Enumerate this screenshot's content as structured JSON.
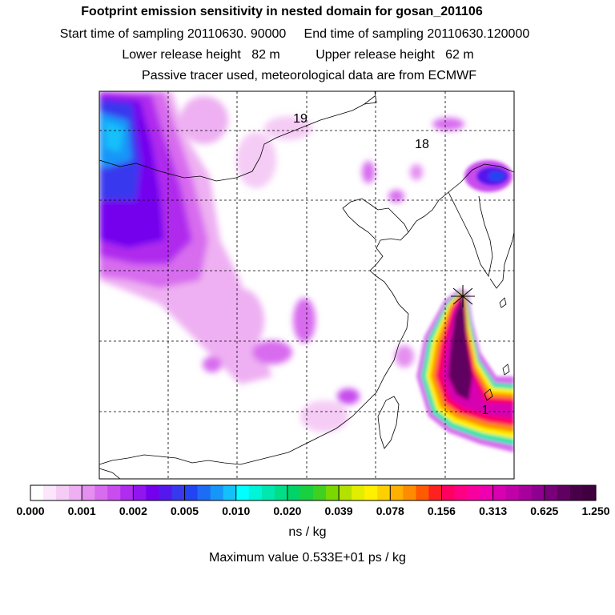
{
  "title": {
    "line1": "Footprint emission sensitivity in nested domain for gosan_201106",
    "line2_a": "Start time of sampling 20110630. 90000",
    "line2_b": "End time of sampling 20110630.120000",
    "line3_a": "Lower release height   82 m",
    "line3_b": "Upper release height   62 m",
    "line4": "Passive tracer used, meteorological data are from ECMWF"
  },
  "map": {
    "day_labels": [
      "19",
      "18",
      "1"
    ],
    "receptor_marker": "star-icon"
  },
  "colorbar": {
    "tick_labels": [
      "0.000",
      "0.001",
      "0.002",
      "0.005",
      "0.010",
      "0.020",
      "0.039",
      "0.078",
      "0.156",
      "0.313",
      "0.625",
      "1.250"
    ],
    "colors": [
      "#ffffff",
      "#fbe6fb",
      "#f5ccf5",
      "#eeb0f2",
      "#e58ff0",
      "#d86cef",
      "#c84cee",
      "#b02cee",
      "#9214ee",
      "#7400ee",
      "#5418ee",
      "#3838ee",
      "#2244f2",
      "#1c6cf6",
      "#1696f8",
      "#14c0fa",
      "#00ffff",
      "#00f4d8",
      "#00e8b0",
      "#00de88",
      "#00d468",
      "#18d040",
      "#40d020",
      "#78d800",
      "#b4e200",
      "#e2ee00",
      "#fff000",
      "#ffd000",
      "#ffb000",
      "#ff8c00",
      "#ff5a00",
      "#ff2020",
      "#ff0060",
      "#ff0084",
      "#f800a0",
      "#ee00b0",
      "#d800b0",
      "#c000a8",
      "#a8009c",
      "#900090",
      "#780078",
      "#600060",
      "#480048",
      "#400040"
    ],
    "units": "ns / kg"
  },
  "max_value_text": "Maximum value  0.533E+01 ps / kg"
}
